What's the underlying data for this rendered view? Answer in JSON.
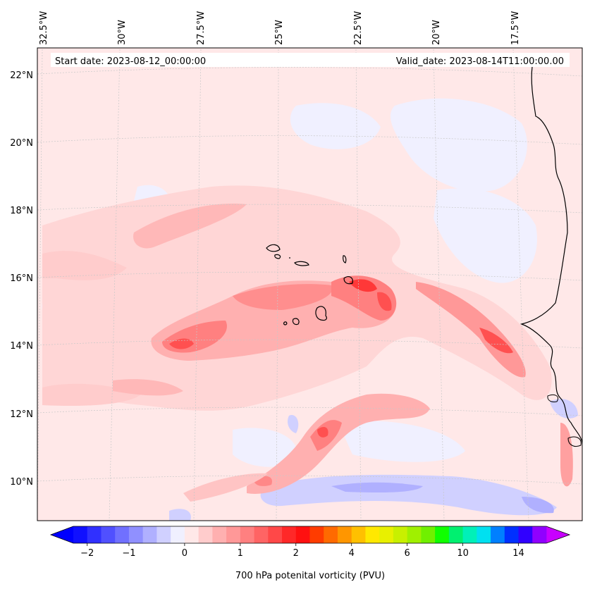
{
  "header": {
    "start_label": "Start date: 2023-08-12_00:00:00",
    "valid_label": "Valid_date: 2023-08-14T11:00:00.00"
  },
  "axes": {
    "lon_labels": [
      "32.5°W",
      "30°W",
      "27.5°W",
      "25°W",
      "22.5°W",
      "20°W",
      "17.5°W"
    ],
    "lat_labels": [
      "22°N",
      "20°N",
      "18°N",
      "16°N",
      "14°N",
      "12°N",
      "10°N"
    ]
  },
  "colorbar": {
    "title": "700 hPa potenital vorticity (PVU)",
    "tick_labels": [
      "−2",
      "−1",
      "0",
      "1",
      "2",
      "4",
      "6",
      "10",
      "14"
    ],
    "colors": [
      "#1010ff",
      "#3030ff",
      "#5050ff",
      "#7070ff",
      "#9090ff",
      "#b0b0ff",
      "#d0d0ff",
      "#f0f0ff",
      "#ffe8e8",
      "#ffcccc",
      "#ffb0b0",
      "#ff9898",
      "#ff8080",
      "#ff6464",
      "#ff4848",
      "#ff2828",
      "#ff1010",
      "#ff3c00",
      "#ff6a00",
      "#ff9600",
      "#ffc000",
      "#ffe800",
      "#e8f000",
      "#c8f000",
      "#a0f000",
      "#70f000",
      "#10ff00",
      "#00f070",
      "#00f0b8",
      "#00e0f0",
      "#0080ff",
      "#0030ff",
      "#3000ff",
      "#9000ff"
    ],
    "under_color": "#0000ff",
    "over_color": "#c800ff"
  },
  "legend_colors": {
    "background": "#ffe8e8",
    "negative_light": "#f0f0ff",
    "negative_mid": "#d0d0ff",
    "negative_strong": "#b0b0ff",
    "positive_light": "#ffcccc",
    "positive_mid": "#ffa8a8",
    "positive_strong": "#ff7070",
    "positive_peak": "#ff3838",
    "coastline": "#000000"
  }
}
